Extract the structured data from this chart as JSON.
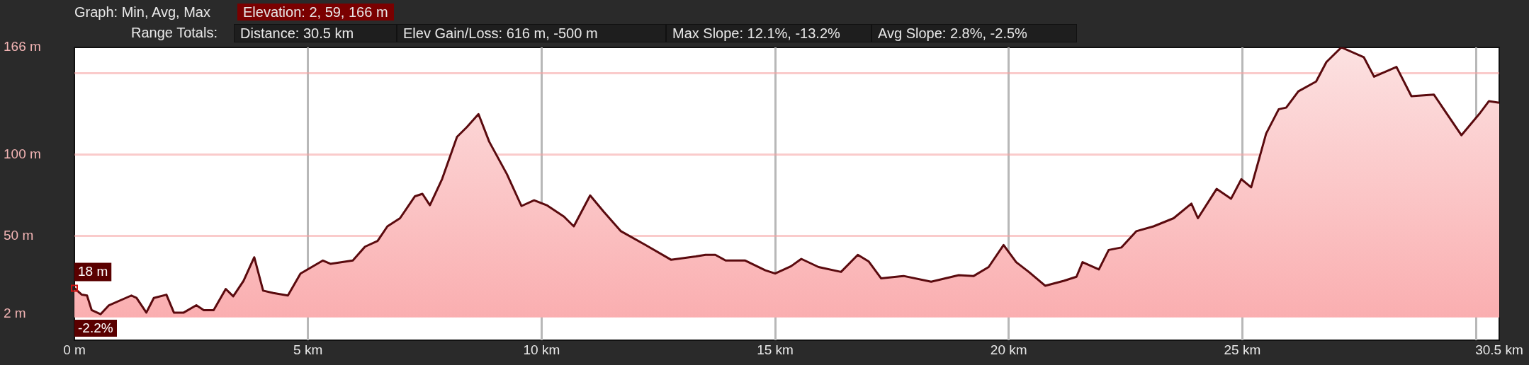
{
  "chart_data": {
    "type": "area",
    "x": [
      0,
      0.16,
      0.27,
      0.37,
      0.56,
      0.74,
      1.22,
      1.33,
      1.54,
      1.7,
      1.97,
      2.13,
      2.34,
      2.61,
      2.77,
      2.98,
      3.24,
      3.4,
      3.62,
      3.85,
      4.04,
      4.26,
      4.57,
      4.84,
      5.32,
      5.48,
      5.96,
      6.22,
      6.49,
      6.7,
      6.97,
      7.29,
      7.45,
      7.61,
      7.87,
      8.19,
      8.4,
      8.65,
      8.88,
      9.26,
      9.57,
      9.84,
      10.11,
      10.48,
      10.69,
      11.04,
      11.33,
      11.7,
      12.23,
      12.77,
      13.3,
      13.51,
      13.72,
      13.94,
      14.36,
      14.79,
      15.0,
      15.34,
      15.56,
      15.93,
      16.41,
      16.77,
      17.0,
      17.27,
      17.75,
      18.34,
      18.93,
      19.25,
      19.57,
      19.89,
      20.16,
      20.43,
      20.78,
      21.18,
      21.45,
      21.58,
      21.93,
      22.14,
      22.41,
      22.73,
      23.1,
      23.53,
      23.91,
      24.05,
      24.45,
      24.76,
      24.98,
      25.19,
      25.51,
      25.78,
      25.94,
      26.2,
      26.58,
      26.8,
      27.12,
      27.6,
      27.82,
      28.3,
      28.62,
      29.1,
      29.69,
      30.07,
      30.28,
      30.5
    ],
    "series": [
      {
        "color": "#5a0a0e",
        "values": [
          18,
          14,
          13.5,
          4.5,
          2,
          7.5,
          13.5,
          12,
          3,
          12,
          14,
          3,
          3,
          7.5,
          4.5,
          4.5,
          17.5,
          13,
          22.5,
          37,
          16.5,
          15,
          13.5,
          27,
          35,
          33,
          35,
          43.5,
          47,
          56,
          61,
          74.5,
          76,
          69,
          85,
          111,
          117,
          125,
          108,
          88,
          68.5,
          72,
          69,
          62,
          56,
          75,
          65,
          53,
          44.5,
          35.5,
          37.5,
          38.5,
          38.5,
          35,
          35,
          29,
          27,
          31.5,
          36,
          31,
          28,
          38.5,
          34.5,
          24,
          25.5,
          22,
          26,
          25.5,
          31,
          44.5,
          34,
          28,
          19.5,
          22.5,
          25,
          34,
          29.5,
          41.5,
          43,
          53,
          56,
          61,
          70,
          61,
          79,
          73,
          85,
          80,
          113,
          128,
          129,
          139,
          145,
          157,
          166,
          160,
          148,
          154,
          136,
          137,
          112,
          125,
          133,
          132
        ]
      }
    ],
    "xlim": [
      0,
      30.5
    ],
    "xticks": [
      {
        "value": 0,
        "label": "0 m"
      },
      {
        "value": 5,
        "label": "5 km"
      },
      {
        "value": 10,
        "label": "10 km"
      },
      {
        "value": 15,
        "label": "15 km"
      },
      {
        "value": 20,
        "label": "20 km"
      },
      {
        "value": 25,
        "label": "25 km"
      },
      {
        "value": 30,
        "label": null
      },
      {
        "value": 30.5,
        "label": "30.5 km"
      }
    ],
    "ylim": [
      -14,
      166
    ],
    "yticks": [
      {
        "value": 2,
        "label": "2 m"
      },
      {
        "value": 50,
        "label": "50 m"
      },
      {
        "value": 100,
        "label": "100 m"
      },
      {
        "value": 150,
        "label": null
      },
      {
        "value": 166,
        "label": "166 m"
      }
    ],
    "grid": true,
    "legend": false,
    "marker": "none",
    "line_style": "solid",
    "annotations": [
      "Graph: Min, Avg, Max",
      "Elevation: 2, 59, 166 m",
      "Range Totals:",
      "Distance: 30.5 km",
      "Elev Gain/Loss: 616 m, -500 m",
      "Max Slope: 12.1%, -13.2%",
      "Avg Slope: 2.8%, -2.5%",
      "-2.2%",
      {
        "text": "18 m",
        "x": 0,
        "y": 18
      }
    ]
  }
}
